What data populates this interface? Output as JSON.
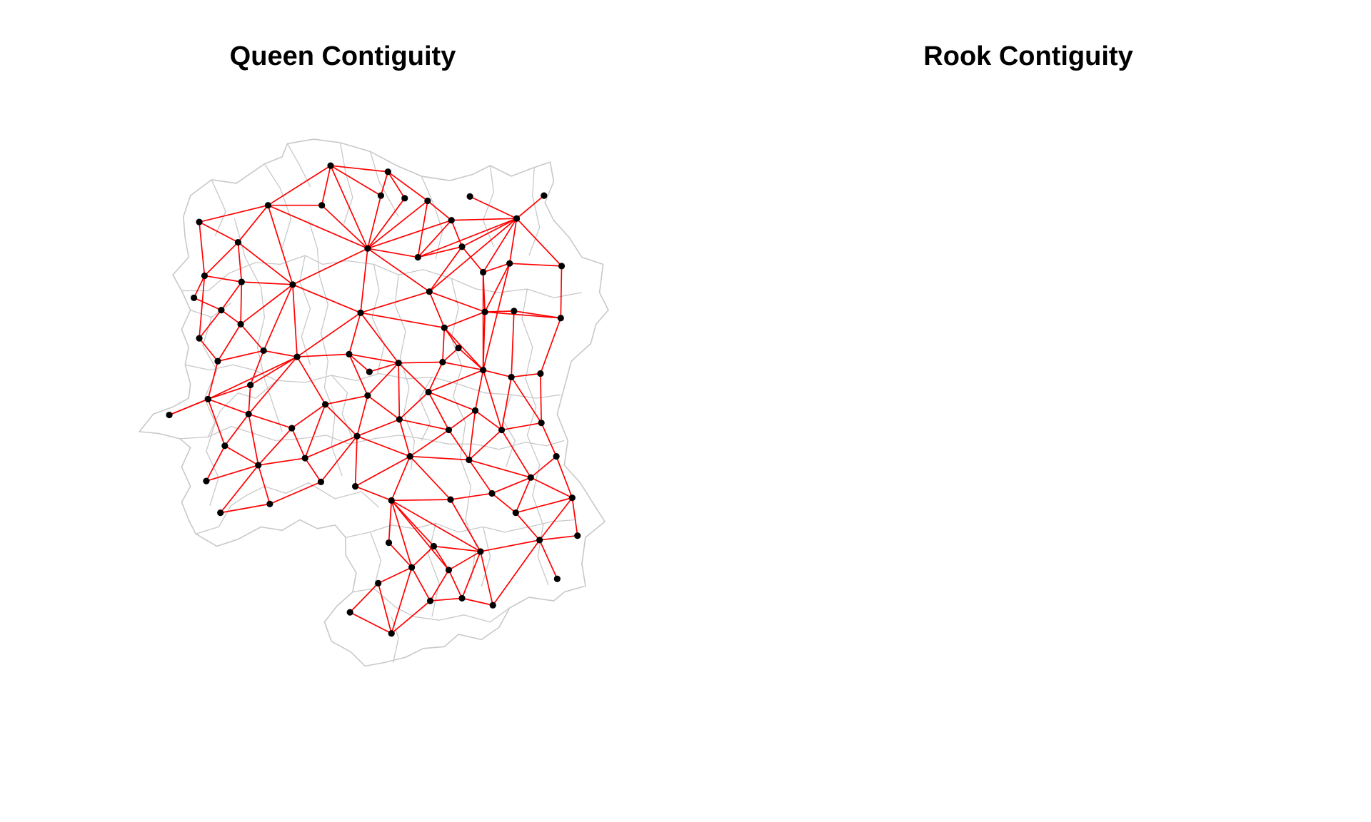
{
  "panels": [
    {
      "title": "Queen Contiguity",
      "variant": "queen"
    },
    {
      "title": "Rook Contiguity",
      "variant": "rook"
    }
  ],
  "colors": {
    "boundary": "#c8c8c8",
    "link": "#ff0000",
    "node": "#000000",
    "background": "#ffffff"
  }
}
